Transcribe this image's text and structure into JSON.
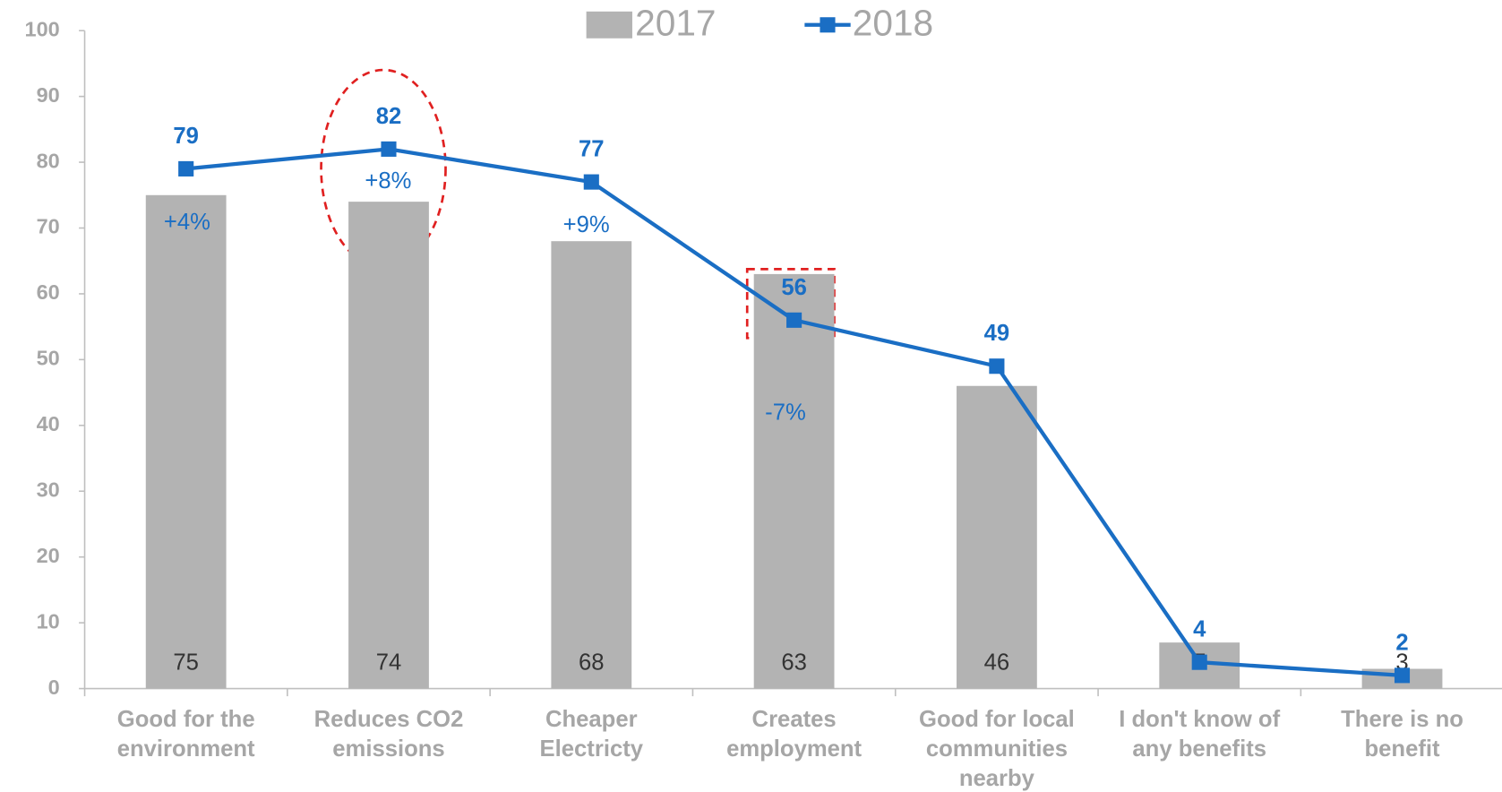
{
  "chart_data": {
    "type": "bar",
    "categories": [
      [
        "Good for the",
        "environment"
      ],
      [
        "Reduces CO2",
        "emissions"
      ],
      [
        "Cheaper",
        "Electricty"
      ],
      [
        "Creates",
        "employment"
      ],
      [
        "Good for local",
        "communities",
        "nearby"
      ],
      [
        "I don't know of",
        "any benefits"
      ],
      [
        "There is no",
        "benefit"
      ]
    ],
    "series": [
      {
        "name": "2017",
        "type": "bar",
        "color": "#b3b3b3",
        "values": [
          75,
          74,
          68,
          63,
          46,
          7,
          3
        ]
      },
      {
        "name": "2018",
        "type": "line",
        "color": "#1a6ec4",
        "values": [
          79,
          82,
          77,
          56,
          49,
          4,
          2
        ]
      }
    ],
    "annotations": [
      "+4%",
      "+8%",
      "+9%",
      "-7%"
    ],
    "ylim": [
      0,
      100
    ],
    "yticks": [
      0,
      10,
      20,
      30,
      40,
      50,
      60,
      70,
      80,
      90,
      100
    ],
    "legend": "top"
  }
}
